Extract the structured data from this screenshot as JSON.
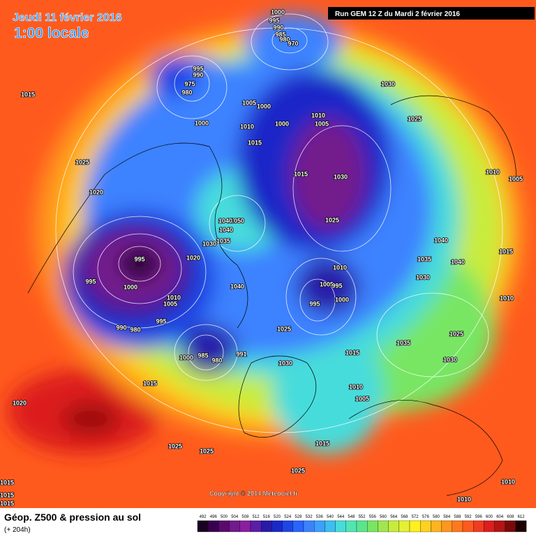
{
  "header": {
    "date": "Jeudi 11 février 2016",
    "time": "1:00 locale",
    "run": "Run GEM 12 Z du Mardi 2 février 2016"
  },
  "copyright": "Copyright © 2014 Meteociel.fr",
  "footer": {
    "title": "Géop. Z500 & pression au sol",
    "lead": "(+ 204h)"
  },
  "scale": {
    "levels": [
      492,
      496,
      500,
      504,
      508,
      512,
      516,
      520,
      524,
      528,
      532,
      536,
      540,
      544,
      548,
      552,
      556,
      560,
      564,
      568,
      572,
      576,
      580,
      584,
      588,
      592,
      596,
      600,
      604,
      608,
      612
    ],
    "colors": [
      "#1a0022",
      "#3a0050",
      "#5a0a6e",
      "#731a8c",
      "#8c1ea0",
      "#5a1ea8",
      "#2a1aa8",
      "#1a28c8",
      "#1e46e6",
      "#2864ff",
      "#3c82ff",
      "#3ca0ff",
      "#3cbef0",
      "#46dcdc",
      "#50e6b4",
      "#5ae68c",
      "#78e664",
      "#a0e650",
      "#c8ec3c",
      "#e6f032",
      "#fff01e",
      "#ffd21e",
      "#ffb41e",
      "#ff961e",
      "#ff781e",
      "#ff5a1e",
      "#f03c1e",
      "#dc1e1e",
      "#b41414",
      "#780a0a",
      "#1e0000"
    ]
  },
  "isobars": [
    1000,
    995,
    990,
    985,
    980,
    970,
    995,
    990,
    975,
    980,
    1015,
    1030,
    1005,
    1000,
    1010,
    1005,
    1000,
    1025,
    1000,
    1010,
    1015,
    1025,
    1015,
    1030,
    1010,
    1005,
    1020,
    1025,
    1050,
    1040,
    1040,
    1035,
    1030,
    1040,
    1015,
    995,
    1020,
    1035,
    1040,
    1010,
    995,
    1030,
    1000,
    1040,
    1005,
    995,
    1010,
    1005,
    1010,
    995,
    1000,
    995,
    990,
    980,
    1025,
    1035,
    1025,
    1000,
    985,
    980,
    991,
    1015,
    1030,
    1030,
    1010,
    1005,
    1015,
    1020,
    1025,
    1025,
    1015,
    1025,
    1015,
    1015,
    1015,
    1010,
    1010
  ]
}
